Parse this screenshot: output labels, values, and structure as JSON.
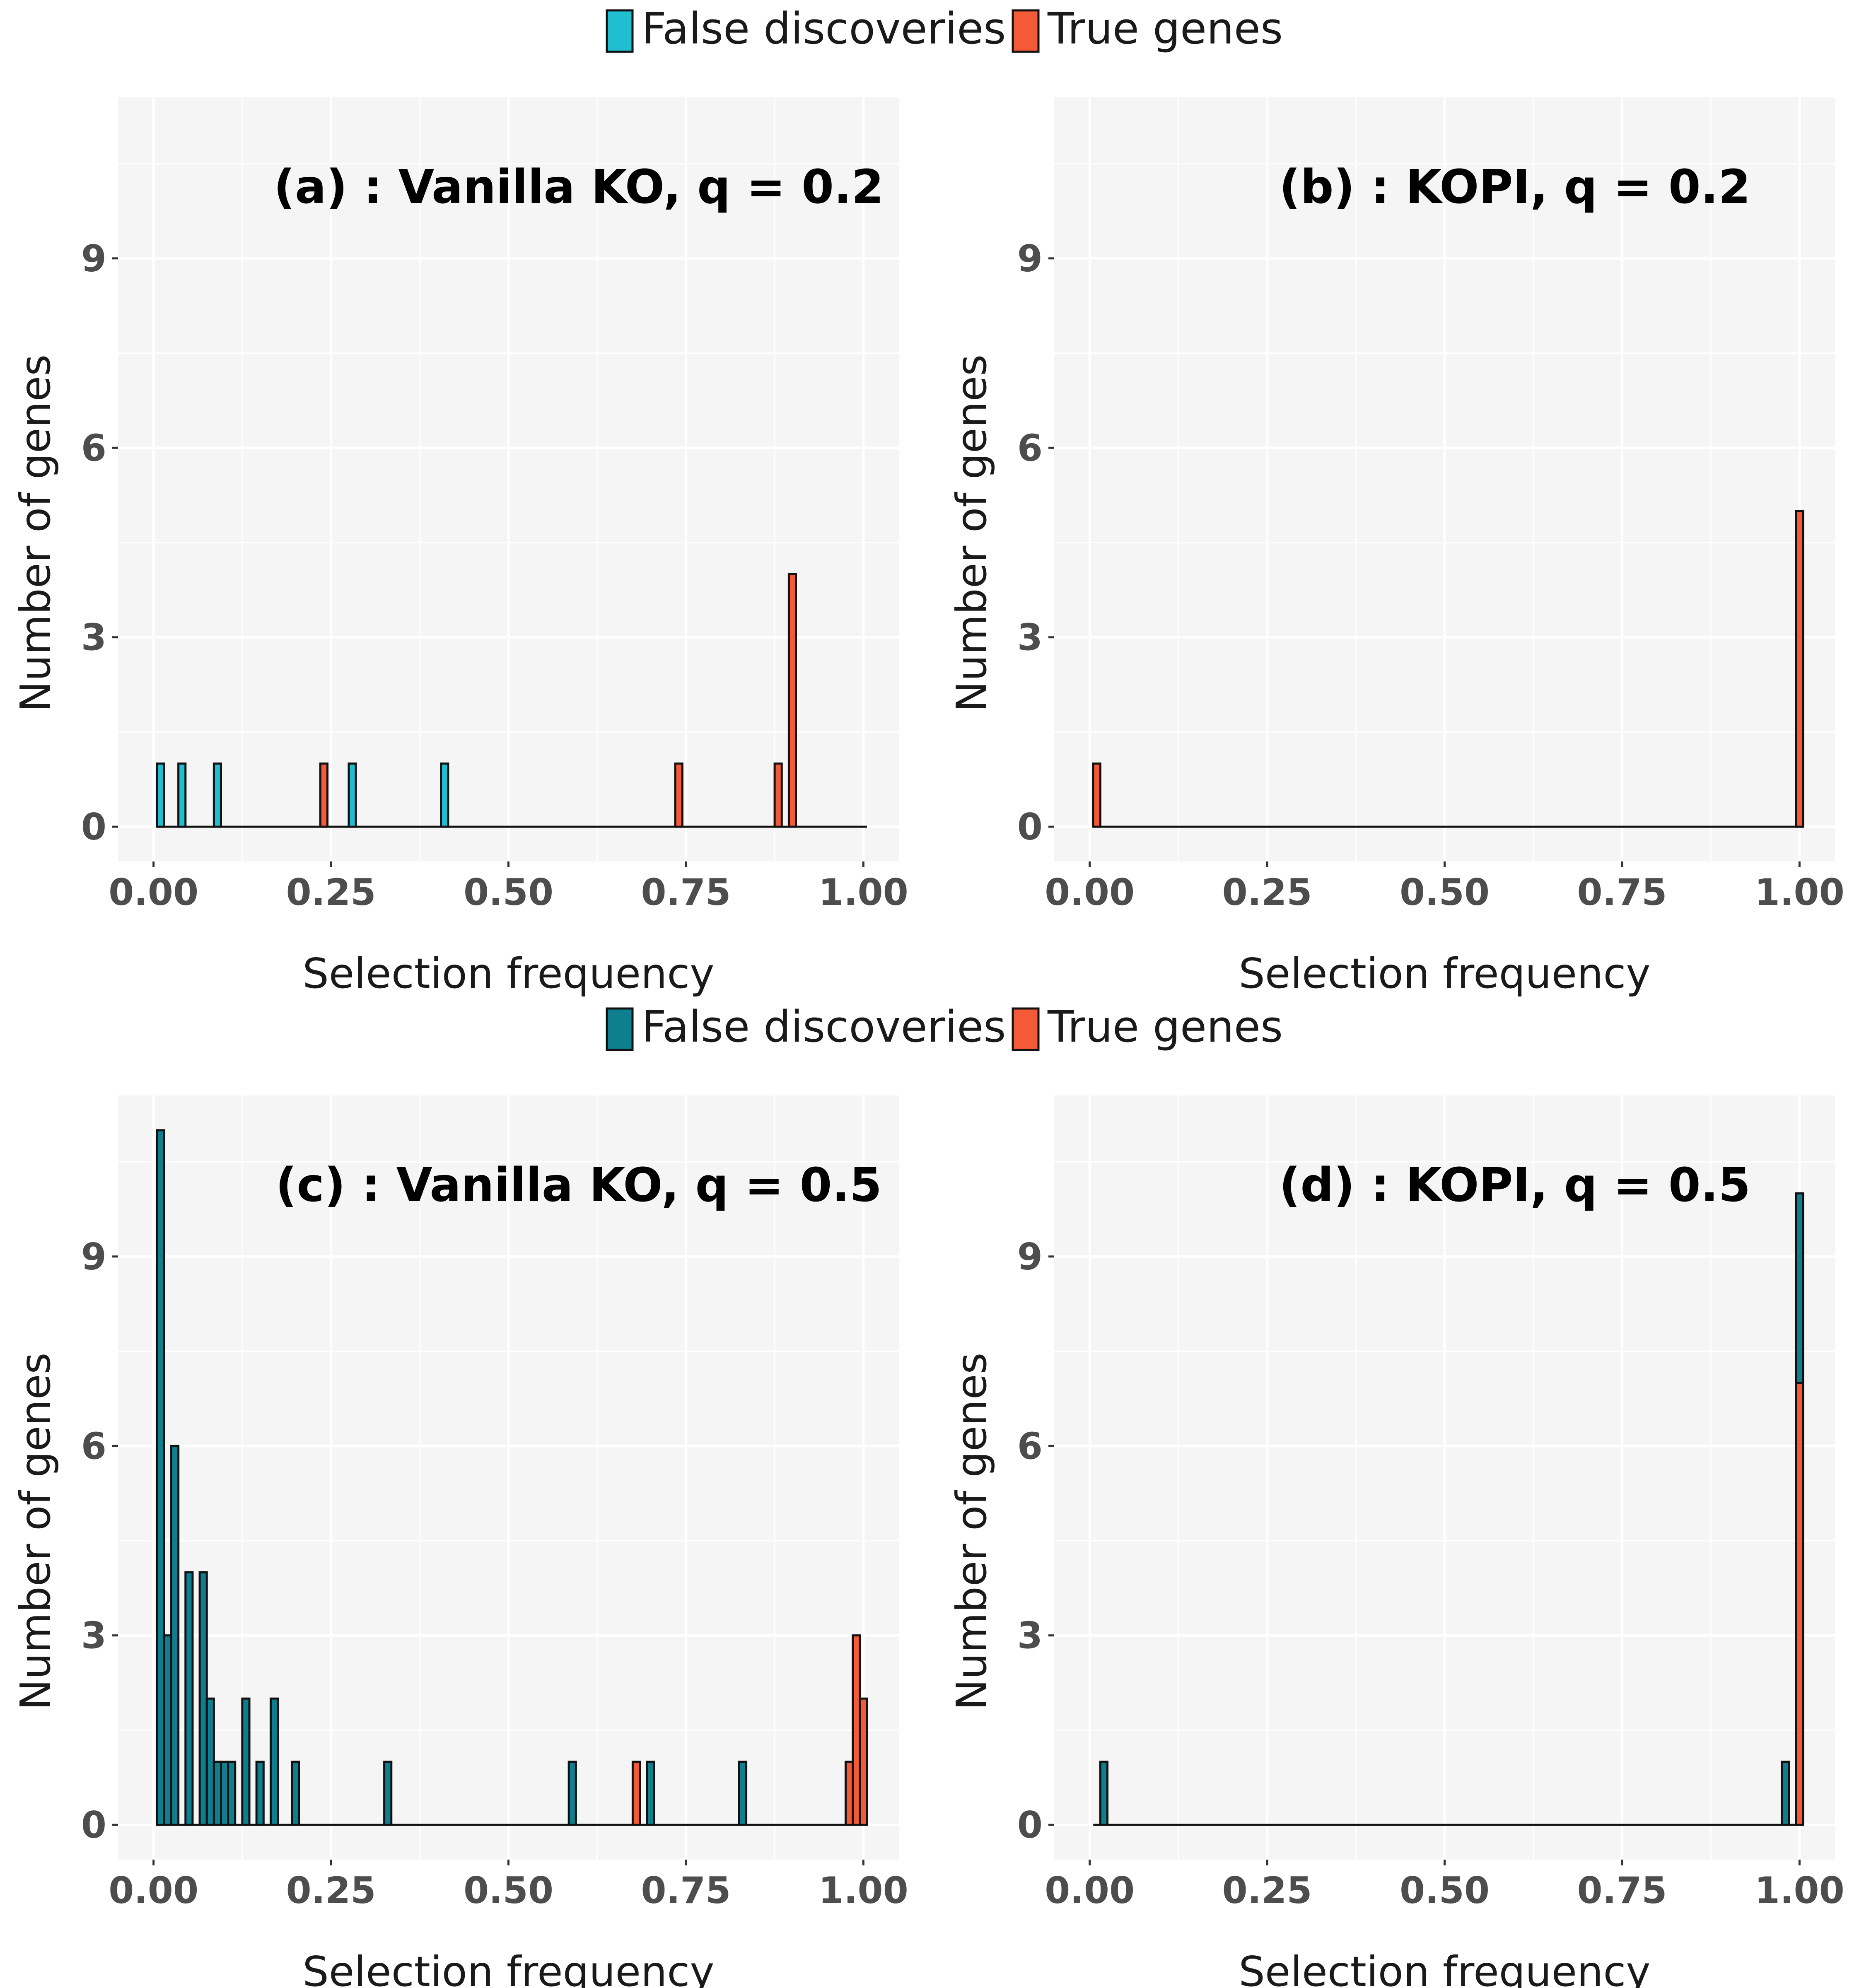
{
  "colors": {
    "false_top": "#1fbfd1",
    "false_bottom": "#0e7f8e",
    "true": "#f55a38",
    "panel_bg": "#f5f5f5",
    "grid": "#ffffff",
    "outline": "#111111"
  },
  "legends": [
    {
      "items": [
        {
          "label": "False discoveries",
          "color": "#1fbfd1"
        },
        {
          "label": "True genes",
          "color": "#f55a38"
        }
      ]
    },
    {
      "items": [
        {
          "label": "False discoveries",
          "color": "#0e7f8e"
        },
        {
          "label": "True genes",
          "color": "#f55a38"
        }
      ]
    }
  ],
  "chart_data": [
    {
      "type": "bar",
      "title": "(a) : Vanilla KO, q = 0.2",
      "xlabel": "Selection frequency",
      "ylabel": "Number of genes",
      "xlim": [
        -0.05,
        1.05
      ],
      "ylim": [
        -0.55,
        11.55
      ],
      "xticks": [
        "0.00",
        "0.25",
        "0.50",
        "0.75",
        "1.00"
      ],
      "yticks": [
        "0",
        "3",
        "6",
        "9"
      ],
      "bin_width": 0.01,
      "stacked": true,
      "series": [
        {
          "name": "False discoveries",
          "x": [
            0.01,
            0.04,
            0.09,
            0.28,
            0.41
          ],
          "values": [
            1,
            1,
            1,
            1,
            1
          ]
        },
        {
          "name": "True genes",
          "x": [
            0.24,
            0.74,
            0.88,
            0.9
          ],
          "values": [
            1,
            1,
            1,
            4
          ]
        }
      ]
    },
    {
      "type": "bar",
      "title": "(b) : KOPI, q = 0.2",
      "xlabel": "Selection frequency",
      "ylabel": "Number of genes",
      "xlim": [
        -0.05,
        1.05
      ],
      "ylim": [
        -0.55,
        11.55
      ],
      "xticks": [
        "0.00",
        "0.25",
        "0.50",
        "0.75",
        "1.00"
      ],
      "yticks": [
        "0",
        "3",
        "6",
        "9"
      ],
      "bin_width": 0.01,
      "stacked": true,
      "series": [
        {
          "name": "False discoveries",
          "x": [],
          "values": []
        },
        {
          "name": "True genes",
          "x": [
            0.01,
            1.0
          ],
          "values": [
            1,
            5
          ]
        }
      ]
    },
    {
      "type": "bar",
      "title": "(c) : Vanilla KO, q = 0.5",
      "xlabel": "Selection frequency",
      "ylabel": "Number of genes",
      "xlim": [
        -0.05,
        1.05
      ],
      "ylim": [
        -0.55,
        11.55
      ],
      "xticks": [
        "0.00",
        "0.25",
        "0.50",
        "0.75",
        "1.00"
      ],
      "yticks": [
        "0",
        "3",
        "6",
        "9"
      ],
      "bin_width": 0.01,
      "stacked": true,
      "series": [
        {
          "name": "False discoveries",
          "x": [
            0.01,
            0.02,
            0.03,
            0.05,
            0.07,
            0.08,
            0.09,
            0.1,
            0.11,
            0.13,
            0.15,
            0.17,
            0.2,
            0.33,
            0.59,
            0.7,
            0.83
          ],
          "values": [
            11,
            3,
            6,
            4,
            4,
            2,
            1,
            1,
            1,
            2,
            1,
            2,
            1,
            1,
            1,
            1,
            1
          ]
        },
        {
          "name": "True genes",
          "x": [
            0.68,
            0.98,
            0.99,
            1.0
          ],
          "values": [
            1,
            1,
            3,
            2
          ]
        }
      ]
    },
    {
      "type": "bar",
      "title": "(d) : KOPI, q = 0.5",
      "xlabel": "Selection frequency",
      "ylabel": "Number of genes",
      "xlim": [
        -0.05,
        1.05
      ],
      "ylim": [
        -0.55,
        11.55
      ],
      "xticks": [
        "0.00",
        "0.25",
        "0.50",
        "0.75",
        "1.00"
      ],
      "yticks": [
        "0",
        "3",
        "6",
        "9"
      ],
      "bin_width": 0.01,
      "stacked": true,
      "series": [
        {
          "name": "False discoveries",
          "x": [
            0.02,
            0.98,
            1.0
          ],
          "values": [
            1,
            1,
            3
          ]
        },
        {
          "name": "True genes",
          "x": [
            1.0
          ],
          "values": [
            7
          ]
        }
      ]
    }
  ]
}
